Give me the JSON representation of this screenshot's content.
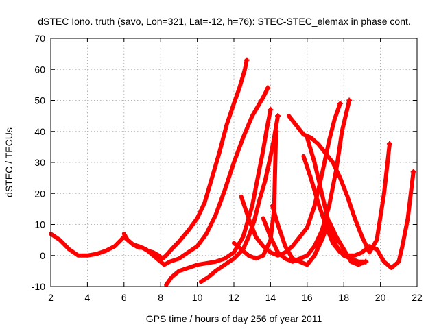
{
  "chart_data": {
    "type": "line",
    "title": "dSTEC Iono. truth (savo, Lon=321, Lat=-12, h=76): STEC-STEC_elemax in phase cont.",
    "xlabel": "GPS time / hours of day 256 of year 2011",
    "ylabel": "dSTEC  / TECUs",
    "xlim": [
      2,
      22
    ],
    "ylim": [
      -10,
      70
    ],
    "xticks": [
      2,
      4,
      6,
      8,
      10,
      12,
      14,
      16,
      18,
      20,
      22
    ],
    "yticks": [
      -10,
      0,
      10,
      20,
      30,
      40,
      50,
      60,
      70
    ],
    "grid": true,
    "legend": "none",
    "marker": "plus",
    "color": "#ff0000",
    "series": [
      {
        "x": [
          2.0,
          2.5,
          3.0,
          3.5,
          4.0,
          4.5,
          5.0,
          5.5,
          6.0,
          6.2,
          6.5,
          6.8,
          7.0,
          7.3,
          7.6,
          7.9,
          8.1,
          8.3,
          8.6,
          9.0,
          9.5,
          10.0,
          10.4,
          10.8,
          11.2,
          11.6,
          12.0,
          12.3,
          12.6,
          12.7
        ],
        "y": [
          7,
          5,
          2,
          0,
          0,
          0.5,
          1.5,
          3,
          6,
          5,
          3.5,
          2.5,
          2.5,
          1.5,
          1,
          0,
          -1,
          0,
          2,
          4.5,
          8,
          12,
          17,
          25,
          33,
          42,
          49,
          54,
          60,
          63
        ]
      },
      {
        "x": [
          6.0,
          6.2,
          6.5,
          6.8,
          7.2,
          7.6,
          8.0,
          8.2,
          8.5,
          9.0,
          9.5,
          10.0,
          10.5,
          11.0,
          11.5,
          12.0,
          12.5,
          13.0,
          13.3,
          13.6,
          13.85
        ],
        "y": [
          7,
          5,
          3.5,
          3,
          2,
          0,
          -2,
          -3,
          -2,
          -1,
          1,
          3,
          7,
          13,
          21,
          30,
          38,
          45,
          48,
          51,
          54
        ]
      },
      {
        "x": [
          8.3,
          8.6,
          9.0,
          9.5,
          10.0,
          10.5,
          11.0,
          11.5,
          12.0,
          12.5,
          13.0,
          13.3,
          13.6,
          13.8,
          14.0
        ],
        "y": [
          -9.5,
          -7,
          -5,
          -4,
          -3,
          -2.5,
          -2,
          -1,
          1,
          6,
          16,
          25,
          34,
          41,
          47
        ]
      },
      {
        "x": [
          10.2,
          10.6,
          11.0,
          11.5,
          12.0,
          12.5,
          12.8,
          13.1,
          13.4,
          13.7,
          14.0,
          14.2,
          14.4
        ],
        "y": [
          -8.5,
          -7,
          -5,
          -3,
          -1,
          2,
          6,
          11,
          18,
          24,
          32,
          38,
          45
        ]
      },
      {
        "x": [
          12.0,
          12.4,
          12.8,
          13.2,
          13.6,
          14.0,
          14.2,
          14.3
        ],
        "y": [
          4,
          2,
          0,
          -1,
          0,
          5,
          15,
          40
        ]
      },
      {
        "x": [
          12.4,
          12.8,
          13.2,
          13.6,
          14.0,
          14.4,
          14.8,
          15.2,
          15.6,
          16.0,
          16.4,
          16.8,
          17.2,
          17.5,
          17.8
        ],
        "y": [
          19,
          12,
          6,
          3,
          1,
          0,
          1,
          3,
          6,
          9,
          16,
          26,
          37,
          44,
          49
        ]
      },
      {
        "x": [
          13.6,
          14.0,
          14.4,
          14.8,
          15.2,
          15.6,
          16.0,
          16.4,
          16.8,
          17.2,
          17.6,
          17.9,
          18.3
        ],
        "y": [
          12,
          6,
          1,
          -1,
          -2,
          -1,
          0,
          3,
          8,
          16,
          28,
          40,
          50
        ]
      },
      {
        "x": [
          14.1,
          14.4,
          14.8,
          15.2,
          15.6,
          16.0,
          16.4,
          16.8,
          17.2,
          17.6,
          18.0,
          18.4,
          18.8,
          19.2
        ],
        "y": [
          16,
          10,
          3,
          -1,
          -2,
          -3,
          0,
          5,
          11,
          6,
          2,
          -2,
          -3,
          -2
        ]
      },
      {
        "x": [
          15.0,
          15.4,
          15.8,
          16.2,
          16.6,
          17.0,
          17.4,
          17.8,
          18.2,
          18.6,
          19.0,
          19.4,
          19.8,
          20.2,
          20.5
        ],
        "y": [
          45,
          42,
          39,
          38,
          36,
          33,
          30,
          25,
          19,
          12,
          6,
          1,
          5,
          20,
          36
        ]
      },
      {
        "x": [
          15.8,
          16.2,
          16.6,
          17.0,
          17.4,
          17.8,
          18.2,
          18.6,
          19.0,
          19.4,
          19.8,
          20.2,
          20.6,
          21.0,
          21.2,
          21.5,
          21.8
        ],
        "y": [
          32,
          25,
          17,
          10,
          4,
          1,
          0,
          0,
          1,
          3,
          2,
          -2,
          -4,
          -2,
          3,
          12,
          27
        ]
      },
      {
        "x": [
          16.0,
          16.4,
          16.8,
          17.2,
          17.6,
          18.0,
          18.4,
          18.8,
          19.2
        ],
        "y": [
          38,
          30,
          20,
          10,
          3,
          0,
          -1,
          -2,
          -2
        ]
      }
    ]
  }
}
